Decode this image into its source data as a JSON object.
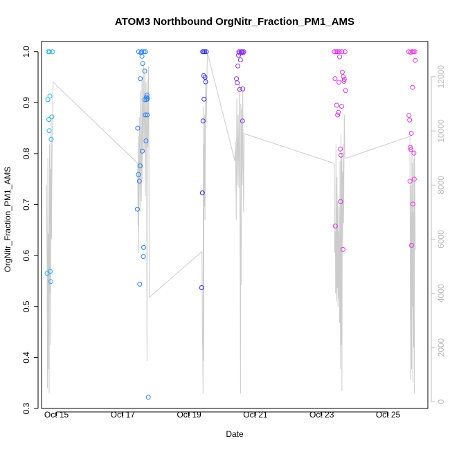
{
  "chart_data": {
    "type": "scatter",
    "title": "ATOM3 Northbound OrgNitr_Fraction_PM1_AMS",
    "xlabel": "Date",
    "ylabel": "OrgNitr_Fraction_PM1_AMS",
    "x_unit": "day of October",
    "xlim": [
      14.55,
      26.2
    ],
    "ylim": [
      0.3,
      1.02
    ],
    "y2lim": [
      -250,
      13300
    ],
    "grid": false,
    "legend": "none",
    "x_ticks": [
      {
        "value": 15,
        "label": "Oct 15"
      },
      {
        "value": 17,
        "label": "Oct 17"
      },
      {
        "value": 19,
        "label": "Oct 19"
      },
      {
        "value": 21,
        "label": "Oct 21"
      },
      {
        "value": 23,
        "label": "Oct 23"
      },
      {
        "value": 25,
        "label": "Oct 25"
      }
    ],
    "y_ticks": [
      {
        "value": 0.3,
        "label": "0.3"
      },
      {
        "value": 0.4,
        "label": "0.4"
      },
      {
        "value": 0.5,
        "label": "0.5"
      },
      {
        "value": 0.6,
        "label": "0.6"
      },
      {
        "value": 0.7,
        "label": "0.7"
      },
      {
        "value": 0.8,
        "label": "0.8"
      },
      {
        "value": 0.9,
        "label": "0.9"
      },
      {
        "value": 1.0,
        "label": "1.0"
      }
    ],
    "y2_ticks": [
      {
        "value": 0,
        "label": "0"
      },
      {
        "value": 2000,
        "label": "2000"
      },
      {
        "value": 4000,
        "label": "4000"
      },
      {
        "value": 6000,
        "label": "6000"
      },
      {
        "value": 8000,
        "label": "8000"
      },
      {
        "value": 10000,
        "label": "10000"
      },
      {
        "value": 12000,
        "label": "12000"
      }
    ],
    "points": [
      {
        "x": 14.72,
        "y": 0.565,
        "color": "#22b4e6"
      },
      {
        "x": 14.74,
        "y": 0.906,
        "color": "#22b4e6"
      },
      {
        "x": 14.75,
        "y": 1.0,
        "color": "#22b4e6"
      },
      {
        "x": 14.77,
        "y": 0.867,
        "color": "#22b4e6"
      },
      {
        "x": 14.78,
        "y": 0.845,
        "color": "#22b4e6"
      },
      {
        "x": 14.79,
        "y": 1.0,
        "color": "#22b4e6"
      },
      {
        "x": 14.8,
        "y": 0.913,
        "color": "#22b4e6"
      },
      {
        "x": 14.81,
        "y": 0.569,
        "color": "#22b4e6"
      },
      {
        "x": 14.83,
        "y": 0.549,
        "color": "#22b4e6"
      },
      {
        "x": 14.84,
        "y": 0.828,
        "color": "#22b4e6"
      },
      {
        "x": 14.86,
        "y": 0.872,
        "color": "#22b4e6"
      },
      {
        "x": 14.88,
        "y": 1.0,
        "color": "#22b4e6"
      },
      {
        "x": 17.44,
        "y": 0.691,
        "color": "#2a7ef0"
      },
      {
        "x": 17.45,
        "y": 0.85,
        "color": "#2a7ef0"
      },
      {
        "x": 17.47,
        "y": 0.759,
        "color": "#2a7ef0"
      },
      {
        "x": 17.48,
        "y": 1.0,
        "color": "#2a7ef0"
      },
      {
        "x": 17.5,
        "y": 0.746,
        "color": "#2a7ef0"
      },
      {
        "x": 17.51,
        "y": 0.544,
        "color": "#2a7ef0"
      },
      {
        "x": 17.52,
        "y": 0.776,
        "color": "#2a7ef0"
      },
      {
        "x": 17.53,
        "y": 0.947,
        "color": "#2a7ef0"
      },
      {
        "x": 17.55,
        "y": 0.998,
        "color": "#2a7ef0"
      },
      {
        "x": 17.57,
        "y": 1.0,
        "color": "#2a7ef0"
      },
      {
        "x": 17.58,
        "y": 0.991,
        "color": "#2a7ef0"
      },
      {
        "x": 17.59,
        "y": 0.805,
        "color": "#2a7ef0"
      },
      {
        "x": 17.6,
        "y": 0.977,
        "color": "#2a7ef0"
      },
      {
        "x": 17.62,
        "y": 0.598,
        "color": "#2a7ef0"
      },
      {
        "x": 17.63,
        "y": 0.616,
        "color": "#2a7ef0"
      },
      {
        "x": 17.64,
        "y": 1.0,
        "color": "#2a7ef0"
      },
      {
        "x": 17.66,
        "y": 0.962,
        "color": "#2a7ef0"
      },
      {
        "x": 17.67,
        "y": 0.906,
        "color": "#2a7ef0"
      },
      {
        "x": 17.68,
        "y": 0.876,
        "color": "#2a7ef0"
      },
      {
        "x": 17.69,
        "y": 1.0,
        "color": "#2a7ef0"
      },
      {
        "x": 17.7,
        "y": 0.825,
        "color": "#2a7ef0"
      },
      {
        "x": 17.71,
        "y": 0.911,
        "color": "#2a7ef0"
      },
      {
        "x": 17.72,
        "y": 0.906,
        "color": "#2a7ef0"
      },
      {
        "x": 17.73,
        "y": 0.915,
        "color": "#2a7ef0"
      },
      {
        "x": 17.74,
        "y": 0.876,
        "color": "#2a7ef0"
      },
      {
        "x": 17.75,
        "y": 0.908,
        "color": "#2a7ef0"
      },
      {
        "x": 17.77,
        "y": 0.322,
        "color": "#2a7ef0"
      },
      {
        "x": 19.38,
        "y": 0.537,
        "color": "#2b2bea"
      },
      {
        "x": 19.4,
        "y": 0.723,
        "color": "#2b2bea"
      },
      {
        "x": 19.41,
        "y": 1.0,
        "color": "#2b2bea"
      },
      {
        "x": 19.42,
        "y": 0.864,
        "color": "#2b2bea"
      },
      {
        "x": 19.43,
        "y": 1.0,
        "color": "#2b2bea"
      },
      {
        "x": 19.44,
        "y": 0.953,
        "color": "#2b2bea"
      },
      {
        "x": 19.45,
        "y": 0.907,
        "color": "#2b2bea"
      },
      {
        "x": 19.47,
        "y": 1.0,
        "color": "#2b2bea"
      },
      {
        "x": 19.48,
        "y": 0.95,
        "color": "#2b2bea"
      },
      {
        "x": 19.5,
        "y": 0.941,
        "color": "#2b2bea"
      },
      {
        "x": 19.52,
        "y": 1.0,
        "color": "#2b2bea"
      },
      {
        "x": 20.43,
        "y": 0.947,
        "color": "#8a2de8"
      },
      {
        "x": 20.45,
        "y": 0.939,
        "color": "#8a2de8"
      },
      {
        "x": 20.47,
        "y": 0.972,
        "color": "#8a2de8"
      },
      {
        "x": 20.49,
        "y": 0.993,
        "color": "#8a2de8"
      },
      {
        "x": 20.5,
        "y": 1.0,
        "color": "#8a2de8"
      },
      {
        "x": 20.52,
        "y": 0.998,
        "color": "#8a2de8"
      },
      {
        "x": 20.53,
        "y": 0.926,
        "color": "#8a2de8"
      },
      {
        "x": 20.55,
        "y": 0.984,
        "color": "#8a2de8"
      },
      {
        "x": 20.57,
        "y": 1.0,
        "color": "#8a2de8"
      },
      {
        "x": 20.58,
        "y": 0.998,
        "color": "#8a2de8"
      },
      {
        "x": 20.6,
        "y": 1.0,
        "color": "#8a2de8"
      },
      {
        "x": 20.61,
        "y": 0.864,
        "color": "#8a2de8"
      },
      {
        "x": 20.62,
        "y": 0.927,
        "color": "#8a2de8"
      },
      {
        "x": 20.63,
        "y": 0.998,
        "color": "#8a2de8"
      },
      {
        "x": 20.65,
        "y": 1.0,
        "color": "#8a2de8"
      },
      {
        "x": 23.38,
        "y": 1.0,
        "color": "#d633e6"
      },
      {
        "x": 23.4,
        "y": 0.947,
        "color": "#d633e6"
      },
      {
        "x": 23.41,
        "y": 0.658,
        "color": "#d633e6"
      },
      {
        "x": 23.43,
        "y": 1.0,
        "color": "#d633e6"
      },
      {
        "x": 23.45,
        "y": 0.895,
        "color": "#d633e6"
      },
      {
        "x": 23.47,
        "y": 1.0,
        "color": "#d633e6"
      },
      {
        "x": 23.48,
        "y": 0.876,
        "color": "#d633e6"
      },
      {
        "x": 23.5,
        "y": 0.881,
        "color": "#d633e6"
      },
      {
        "x": 23.52,
        "y": 0.94,
        "color": "#d633e6"
      },
      {
        "x": 23.53,
        "y": 1.0,
        "color": "#d633e6"
      },
      {
        "x": 23.54,
        "y": 0.99,
        "color": "#d633e6"
      },
      {
        "x": 23.56,
        "y": 0.809,
        "color": "#d633e6"
      },
      {
        "x": 23.57,
        "y": 0.706,
        "color": "#d633e6"
      },
      {
        "x": 23.58,
        "y": 0.797,
        "color": "#d633e6"
      },
      {
        "x": 23.6,
        "y": 0.893,
        "color": "#d633e6"
      },
      {
        "x": 23.61,
        "y": 1.0,
        "color": "#d633e6"
      },
      {
        "x": 23.62,
        "y": 0.96,
        "color": "#d633e6"
      },
      {
        "x": 23.64,
        "y": 0.612,
        "color": "#d633e6"
      },
      {
        "x": 23.65,
        "y": 0.951,
        "color": "#d633e6"
      },
      {
        "x": 23.67,
        "y": 0.942,
        "color": "#d633e6"
      },
      {
        "x": 23.68,
        "y": 0.946,
        "color": "#d633e6"
      },
      {
        "x": 23.7,
        "y": 1.0,
        "color": "#d633e6"
      },
      {
        "x": 23.72,
        "y": 0.924,
        "color": "#d633e6"
      },
      {
        "x": 25.62,
        "y": 1.0,
        "color": "#ee33dd"
      },
      {
        "x": 25.63,
        "y": 0.875,
        "color": "#ee33dd"
      },
      {
        "x": 25.65,
        "y": 0.866,
        "color": "#ee33dd"
      },
      {
        "x": 25.66,
        "y": 0.746,
        "color": "#ee33dd"
      },
      {
        "x": 25.67,
        "y": 0.812,
        "color": "#ee33dd"
      },
      {
        "x": 25.68,
        "y": 0.999,
        "color": "#ee33dd"
      },
      {
        "x": 25.69,
        "y": 0.808,
        "color": "#ee33dd"
      },
      {
        "x": 25.7,
        "y": 0.84,
        "color": "#ee33dd"
      },
      {
        "x": 25.71,
        "y": 0.62,
        "color": "#ee33dd"
      },
      {
        "x": 25.73,
        "y": 1.0,
        "color": "#ee33dd"
      },
      {
        "x": 25.74,
        "y": 0.93,
        "color": "#ee33dd"
      },
      {
        "x": 25.75,
        "y": 0.701,
        "color": "#ee33dd"
      },
      {
        "x": 25.77,
        "y": 1.0,
        "color": "#ee33dd"
      },
      {
        "x": 25.78,
        "y": 0.801,
        "color": "#ee33dd"
      },
      {
        "x": 25.79,
        "y": 0.75,
        "color": "#ee33dd"
      },
      {
        "x": 25.81,
        "y": 1.0,
        "color": "#ee33dd"
      },
      {
        "x": 25.82,
        "y": 0.983,
        "color": "#ee33dd"
      }
    ],
    "altitude_line": {
      "color": "#cccccc",
      "axis": "right",
      "points": [
        [
          14.7,
          8000
        ],
        [
          14.72,
          5000
        ],
        [
          14.73,
          500
        ],
        [
          14.74,
          9000
        ],
        [
          14.75,
          6000
        ],
        [
          14.76,
          1200
        ],
        [
          14.77,
          6200
        ],
        [
          14.78,
          300
        ],
        [
          14.79,
          9500
        ],
        [
          14.8,
          4000
        ],
        [
          14.81,
          8600
        ],
        [
          14.82,
          2100
        ],
        [
          14.83,
          7000
        ],
        [
          14.84,
          10500
        ],
        [
          14.85,
          6000
        ],
        [
          14.87,
          9700
        ],
        [
          14.9,
          11800
        ],
        [
          17.45,
          8800
        ],
        [
          17.46,
          6500
        ],
        [
          17.47,
          9800
        ],
        [
          17.48,
          5500
        ],
        [
          17.5,
          10500
        ],
        [
          17.52,
          7000
        ],
        [
          17.54,
          11500
        ],
        [
          17.56,
          7400
        ],
        [
          17.58,
          12000
        ],
        [
          17.6,
          8200
        ],
        [
          17.62,
          12500
        ],
        [
          17.64,
          9200
        ],
        [
          17.66,
          12300
        ],
        [
          17.68,
          7600
        ],
        [
          17.7,
          11800
        ],
        [
          17.72,
          9300
        ],
        [
          17.73,
          1500
        ],
        [
          17.74,
          11900
        ],
        [
          17.76,
          9400
        ],
        [
          17.78,
          12400
        ],
        [
          17.8,
          3850
        ],
        [
          19.39,
          5550
        ],
        [
          19.4,
          2500
        ],
        [
          19.41,
          1800
        ],
        [
          19.42,
          300
        ],
        [
          19.43,
          10900
        ],
        [
          19.44,
          1500
        ],
        [
          19.45,
          9500
        ],
        [
          19.46,
          7200
        ],
        [
          19.47,
          10600
        ],
        [
          19.48,
          6700
        ],
        [
          19.5,
          12000
        ],
        [
          19.52,
          10300
        ],
        [
          19.55,
          12900
        ],
        [
          20.38,
          8900
        ],
        [
          20.4,
          9600
        ],
        [
          20.42,
          6700
        ],
        [
          20.44,
          11200
        ],
        [
          20.46,
          8000
        ],
        [
          20.48,
          10600
        ],
        [
          20.5,
          7900
        ],
        [
          20.52,
          11800
        ],
        [
          20.54,
          5000
        ],
        [
          20.55,
          300
        ],
        [
          20.56,
          11000
        ],
        [
          20.57,
          4300
        ],
        [
          20.58,
          10800
        ],
        [
          20.6,
          8000
        ],
        [
          20.62,
          11500
        ],
        [
          20.64,
          7000
        ],
        [
          20.66,
          9900
        ],
        [
          23.38,
          8800
        ],
        [
          23.39,
          5500
        ],
        [
          23.41,
          6300
        ],
        [
          23.42,
          4000
        ],
        [
          23.43,
          9500
        ],
        [
          23.44,
          4400
        ],
        [
          23.45,
          3700
        ],
        [
          23.46,
          8300
        ],
        [
          23.47,
          4200
        ],
        [
          23.48,
          7400
        ],
        [
          23.49,
          3500
        ],
        [
          23.5,
          6300
        ],
        [
          23.51,
          3800
        ],
        [
          23.52,
          7200
        ],
        [
          23.53,
          4500
        ],
        [
          23.54,
          2900
        ],
        [
          23.55,
          8900
        ],
        [
          23.56,
          3300
        ],
        [
          23.57,
          1200
        ],
        [
          23.58,
          9900
        ],
        [
          23.59,
          2100
        ],
        [
          23.6,
          9200
        ],
        [
          23.61,
          400
        ],
        [
          23.62,
          8500
        ],
        [
          23.63,
          5900
        ],
        [
          23.64,
          9500
        ],
        [
          23.66,
          6600
        ],
        [
          23.68,
          10600
        ],
        [
          23.7,
          9000
        ],
        [
          23.75,
          9000
        ],
        [
          25.66,
          9800
        ],
        [
          25.67,
          4500
        ],
        [
          25.68,
          800
        ],
        [
          25.69,
          8000
        ],
        [
          25.7,
          5000
        ],
        [
          25.71,
          1200
        ],
        [
          25.72,
          9500
        ],
        [
          25.73,
          3500
        ],
        [
          25.74,
          8800
        ],
        [
          25.75,
          700
        ],
        [
          25.76,
          7000
        ],
        [
          25.77,
          2000
        ],
        [
          25.78,
          9000
        ],
        [
          25.79,
          300
        ],
        [
          25.8,
          9300
        ],
        [
          25.82,
          5600
        ]
      ]
    }
  }
}
